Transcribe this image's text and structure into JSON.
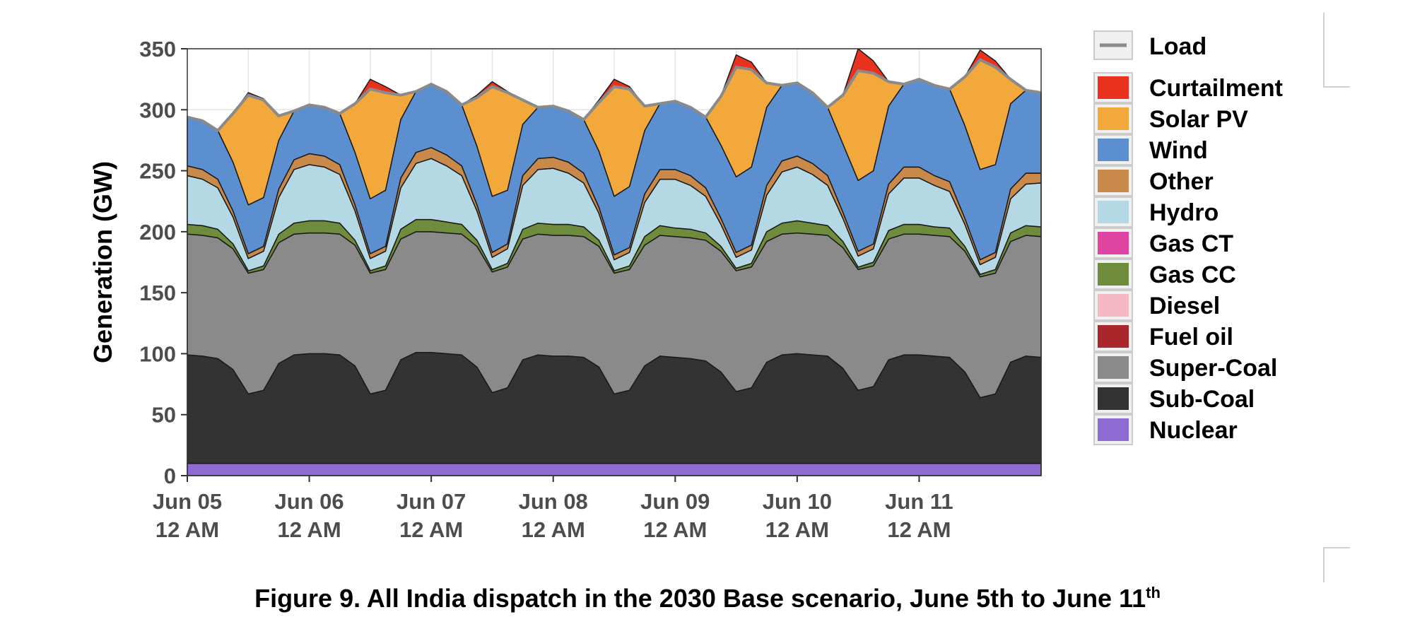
{
  "chart_data": {
    "type": "area",
    "stacked": true,
    "ylabel": "Generation (GW)",
    "ylim": [
      0,
      350
    ],
    "yticks": [
      0,
      50,
      100,
      150,
      200,
      250,
      300,
      350
    ],
    "x_unit": "hours from Jun 05 12 AM",
    "xlim": [
      0,
      168
    ],
    "xticks": [
      {
        "x": 0,
        "line1": "Jun 05",
        "line2": "12 AM"
      },
      {
        "x": 24,
        "line1": "Jun 06",
        "line2": "12 AM"
      },
      {
        "x": 48,
        "line1": "Jun 07",
        "line2": "12 AM"
      },
      {
        "x": 72,
        "line1": "Jun 08",
        "line2": "12 AM"
      },
      {
        "x": 96,
        "line1": "Jun 09",
        "line2": "12 AM"
      },
      {
        "x": 120,
        "line1": "Jun 10",
        "line2": "12 AM"
      },
      {
        "x": 144,
        "line1": "Jun 11",
        "line2": "12 AM"
      }
    ],
    "grid": true,
    "legend_position": "right",
    "load_legend": {
      "name": "Load",
      "color": "#8a8a8a"
    },
    "legend": [
      {
        "name": "Curtailment",
        "color": "#e8321e"
      },
      {
        "name": "Solar PV",
        "color": "#f2a83a"
      },
      {
        "name": "Wind",
        "color": "#5b8fd0"
      },
      {
        "name": "Other",
        "color": "#c8894b"
      },
      {
        "name": "Hydro",
        "color": "#b5d9e4"
      },
      {
        "name": "Gas CT",
        "color": "#de44a0"
      },
      {
        "name": "Gas CC",
        "color": "#6e8c3c"
      },
      {
        "name": "Diesel",
        "color": "#f4b8c4"
      },
      {
        "name": "Fuel oil",
        "color": "#a9262a"
      },
      {
        "name": "Super-Coal",
        "color": "#8a8a8a"
      },
      {
        "name": "Sub-Coal",
        "color": "#333333"
      },
      {
        "name": "Nuclear",
        "color": "#8e6ad3"
      }
    ],
    "x_hours": [
      0,
      3,
      6,
      9,
      12,
      15,
      18,
      21,
      24,
      27,
      30,
      33,
      36,
      39,
      42,
      45,
      48,
      51,
      54,
      57,
      60,
      63,
      66,
      69,
      72,
      75,
      78,
      81,
      84,
      87,
      90,
      93,
      96,
      99,
      102,
      105,
      108,
      111,
      114,
      117,
      120,
      123,
      126,
      129,
      132,
      135,
      138,
      141,
      144,
      147,
      150,
      153,
      156,
      159,
      162,
      165,
      168
    ],
    "series": [
      {
        "name": "Nuclear",
        "values": [
          10,
          10,
          10,
          10,
          10,
          10,
          10,
          10,
          10,
          10,
          10,
          10,
          10,
          10,
          10,
          10,
          10,
          10,
          10,
          10,
          10,
          10,
          10,
          10,
          10,
          10,
          10,
          10,
          10,
          10,
          10,
          10,
          10,
          10,
          10,
          10,
          10,
          10,
          10,
          10,
          10,
          10,
          10,
          10,
          10,
          10,
          10,
          10,
          10,
          10,
          10,
          10,
          10,
          10,
          10,
          10,
          10
        ]
      },
      {
        "name": "Sub-Coal",
        "values": [
          89,
          88,
          86,
          77,
          57,
          60,
          82,
          89,
          90,
          90,
          89,
          80,
          57,
          60,
          85,
          91,
          91,
          90,
          89,
          79,
          58,
          62,
          85,
          89,
          88,
          88,
          87,
          79,
          57,
          60,
          80,
          88,
          87,
          86,
          84,
          75,
          59,
          62,
          83,
          89,
          90,
          89,
          88,
          78,
          60,
          63,
          85,
          89,
          89,
          88,
          87,
          75,
          54,
          57,
          83,
          88,
          87
        ]
      },
      {
        "name": "Super-Coal",
        "values": [
          99,
          99,
          99,
          99,
          99,
          99,
          99,
          99,
          99,
          99,
          99,
          99,
          99,
          99,
          99,
          99,
          99,
          99,
          99,
          99,
          99,
          99,
          99,
          99,
          99,
          99,
          99,
          99,
          99,
          99,
          99,
          99,
          99,
          99,
          99,
          99,
          99,
          99,
          99,
          99,
          99,
          99,
          99,
          99,
          99,
          99,
          99,
          99,
          99,
          99,
          99,
          99,
          99,
          99,
          99,
          99,
          99
        ]
      },
      {
        "name": "Fuel oil",
        "values": [
          0,
          0,
          0,
          0,
          0,
          0,
          0,
          0,
          0,
          0,
          0,
          0,
          0,
          0,
          0,
          0,
          0,
          0,
          0,
          0,
          0,
          0,
          0,
          0,
          0,
          0,
          0,
          0,
          0,
          0,
          0,
          0,
          0,
          0,
          0,
          0,
          0,
          0,
          0,
          0,
          0,
          0,
          0,
          0,
          0,
          0,
          0,
          0,
          0,
          0,
          0,
          0,
          0,
          0,
          0,
          0,
          0
        ]
      },
      {
        "name": "Diesel",
        "values": [
          0,
          0,
          0,
          0,
          0,
          0,
          0,
          0,
          0,
          0,
          0,
          0,
          0,
          0,
          0,
          0,
          0,
          0,
          0,
          0,
          0,
          0,
          0,
          0,
          0,
          0,
          0,
          0,
          0,
          0,
          0,
          0,
          0,
          0,
          0,
          0,
          0,
          0,
          0,
          0,
          0,
          0,
          0,
          0,
          0,
          0,
          0,
          0,
          0,
          0,
          0,
          0,
          0,
          0,
          0,
          0,
          0
        ]
      },
      {
        "name": "Gas CC",
        "values": [
          8,
          8,
          7,
          4,
          2,
          3,
          7,
          9,
          10,
          10,
          9,
          4,
          2,
          3,
          8,
          10,
          10,
          9,
          8,
          5,
          2,
          3,
          8,
          9,
          9,
          9,
          8,
          5,
          2,
          3,
          7,
          8,
          7,
          7,
          6,
          4,
          2,
          3,
          8,
          9,
          10,
          9,
          8,
          5,
          2,
          3,
          7,
          8,
          8,
          7,
          7,
          4,
          2,
          3,
          7,
          8,
          8
        ]
      },
      {
        "name": "Gas CT",
        "values": [
          0,
          0,
          0,
          0,
          0,
          0,
          0,
          0,
          0,
          0,
          0,
          0,
          0,
          0,
          0,
          0,
          0,
          0,
          0,
          0,
          0,
          0,
          0,
          0,
          0,
          0,
          0,
          0,
          0,
          0,
          0,
          0,
          0,
          0,
          0,
          0,
          0,
          0,
          0,
          0,
          0,
          0,
          0,
          0,
          0,
          0,
          0,
          0,
          0,
          0,
          0,
          0,
          0,
          0,
          0,
          0,
          0
        ]
      },
      {
        "name": "Hydro",
        "values": [
          40,
          38,
          34,
          22,
          10,
          12,
          30,
          44,
          46,
          44,
          40,
          24,
          10,
          12,
          34,
          46,
          50,
          46,
          40,
          24,
          10,
          12,
          36,
          44,
          46,
          42,
          36,
          22,
          9,
          11,
          28,
          38,
          40,
          36,
          30,
          18,
          9,
          11,
          30,
          42,
          44,
          40,
          33,
          19,
          9,
          11,
          30,
          38,
          38,
          34,
          30,
          18,
          8,
          10,
          28,
          34,
          36
        ]
      },
      {
        "name": "Other",
        "values": [
          8,
          8,
          7,
          5,
          4,
          4,
          7,
          8,
          9,
          9,
          8,
          5,
          4,
          4,
          8,
          9,
          9,
          9,
          8,
          5,
          4,
          4,
          8,
          9,
          9,
          9,
          8,
          5,
          4,
          4,
          7,
          8,
          8,
          8,
          7,
          5,
          4,
          4,
          8,
          9,
          9,
          9,
          8,
          5,
          4,
          4,
          8,
          9,
          9,
          8,
          8,
          5,
          4,
          4,
          8,
          9,
          8
        ]
      },
      {
        "name": "Wind",
        "values": [
          40,
          40,
          40,
          40,
          40,
          40,
          40,
          40,
          40,
          40,
          42,
          43,
          45,
          46,
          48,
          50,
          52,
          52,
          50,
          48,
          46,
          44,
          42,
          42,
          42,
          42,
          44,
          46,
          48,
          50,
          52,
          54,
          56,
          56,
          58,
          60,
          62,
          64,
          64,
          62,
          60,
          58,
          56,
          56,
          58,
          60,
          64,
          68,
          72,
          74,
          76,
          76,
          74,
          72,
          70,
          68,
          66
        ]
      },
      {
        "name": "Solar PV",
        "values": [
          0,
          0,
          0,
          40,
          90,
          80,
          20,
          0,
          0,
          0,
          0,
          40,
          90,
          80,
          20,
          0,
          0,
          0,
          0,
          40,
          90,
          80,
          20,
          0,
          0,
          0,
          0,
          40,
          90,
          80,
          20,
          0,
          0,
          0,
          0,
          40,
          90,
          80,
          20,
          0,
          0,
          0,
          0,
          40,
          90,
          80,
          20,
          0,
          0,
          0,
          0,
          40,
          90,
          80,
          20,
          0,
          0
        ]
      },
      {
        "name": "Curtailment",
        "values": [
          0,
          0,
          0,
          0,
          2,
          1,
          0,
          0,
          0,
          0,
          0,
          0,
          8,
          5,
          0,
          0,
          0,
          0,
          0,
          2,
          4,
          1,
          0,
          0,
          0,
          0,
          0,
          2,
          6,
          2,
          0,
          0,
          0,
          0,
          0,
          0,
          10,
          6,
          0,
          0,
          0,
          0,
          0,
          0,
          18,
          10,
          0,
          0,
          0,
          0,
          0,
          0,
          8,
          5,
          0,
          0,
          0
        ]
      }
    ]
  },
  "caption": {
    "text": "Figure 9. All India dispatch in the 2030 Base scenario, June 5th to June 11",
    "superscript": "th"
  }
}
